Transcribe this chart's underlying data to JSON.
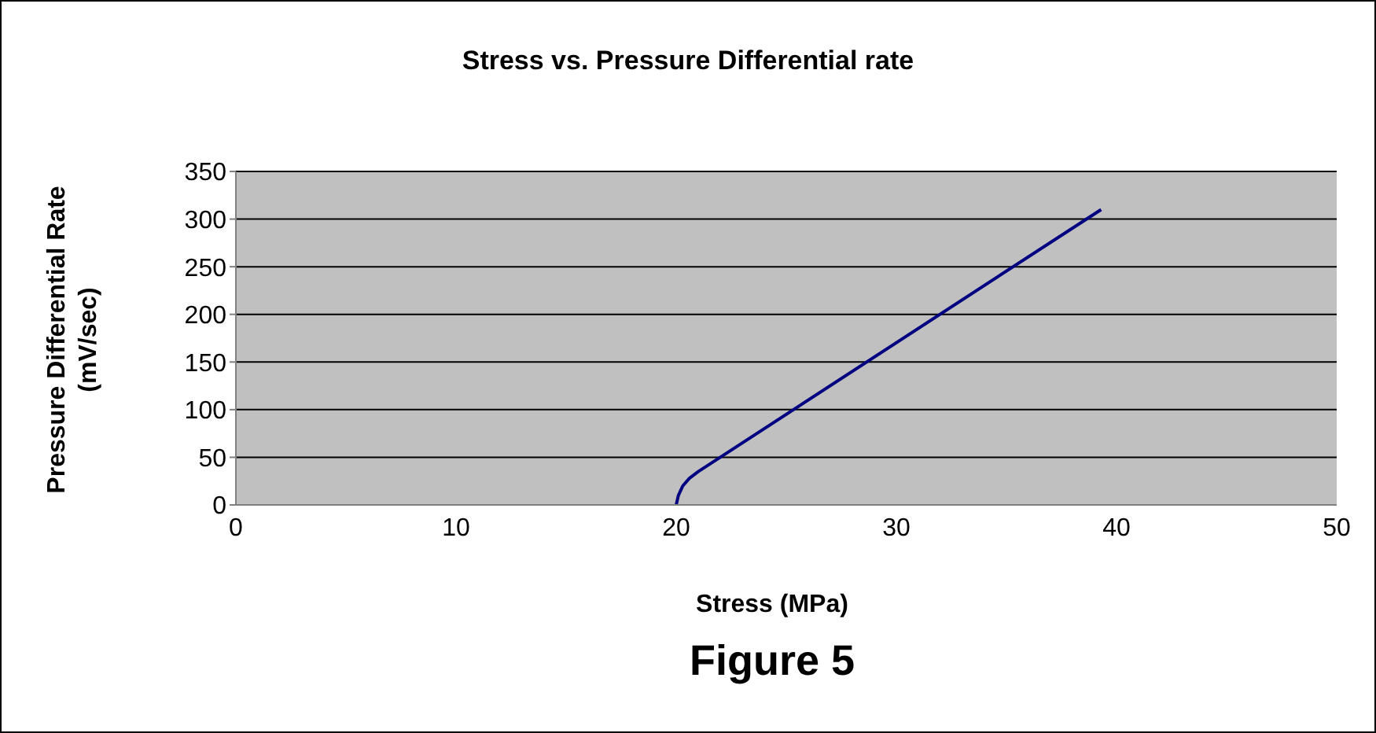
{
  "chart_data": {
    "type": "line",
    "title": "Stress vs. Pressure Differential rate",
    "xlabel": "Stress (MPa)",
    "ylabel": "Pressure Differential Rate\n(mV/sec)",
    "annotations": [
      "Figure 5"
    ],
    "series": [
      {
        "color": "#000080",
        "x": [
          20,
          20.1,
          20.3,
          20.6,
          21,
          39.3
        ],
        "values": [
          0,
          10,
          20,
          28,
          35,
          310
        ]
      }
    ],
    "xlim": [
      0,
      50
    ],
    "xticks": [
      0,
      10,
      20,
      30,
      40,
      50
    ],
    "ylim": [
      0,
      350
    ],
    "yticks": [
      0,
      50,
      100,
      150,
      200,
      250,
      300,
      350
    ],
    "grid": "y",
    "legend": false,
    "marker": "none",
    "line_style": "solid"
  }
}
